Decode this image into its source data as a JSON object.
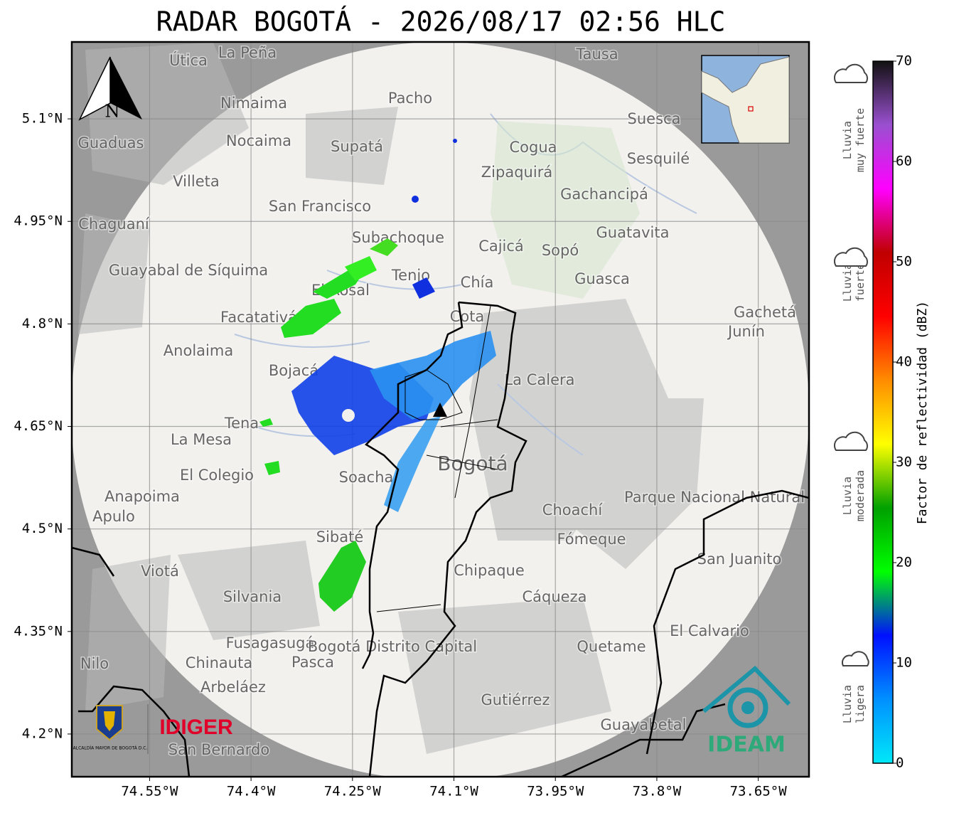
{
  "title": "RADAR BOGOTÁ - 2026/08/17 02:56 HLC",
  "map": {
    "xlim": [
      -74.665,
      -73.575
    ],
    "ylim": [
      4.1375,
      5.2125
    ],
    "xticks": [
      {
        "value": -74.55,
        "label": "74.55°W"
      },
      {
        "value": -74.4,
        "label": "74.4°W"
      },
      {
        "value": -74.25,
        "label": "74.25°W"
      },
      {
        "value": -74.1,
        "label": "74.1°W"
      },
      {
        "value": -73.95,
        "label": "73.95°W"
      },
      {
        "value": -73.8,
        "label": "73.8°W"
      },
      {
        "value": -73.65,
        "label": "73.65°W"
      }
    ],
    "yticks": [
      {
        "value": 5.1,
        "label": "5.1°N"
      },
      {
        "value": 4.95,
        "label": "4.95°N"
      },
      {
        "value": 4.8,
        "label": "4.8°N"
      },
      {
        "value": 4.65,
        "label": "4.65°N"
      },
      {
        "value": 4.5,
        "label": "4.5°N"
      },
      {
        "value": 4.35,
        "label": "4.35°N"
      },
      {
        "value": 4.2,
        "label": "4.2°N"
      }
    ],
    "grid": true,
    "north": "N",
    "places": [
      "La Peña",
      "Útica",
      "Tausa",
      "Pacho",
      "Nimaima",
      "Nocaima",
      "Supatá",
      "Guaduas",
      "Cogua",
      "Suesca",
      "Zipaquirá",
      "Sesquilé",
      "Villeta",
      "San Francisco",
      "Gachancipá",
      "Chaguaní",
      "Subachoque",
      "Guatavita",
      "Cajicá",
      "Sopó",
      "Guayabal de Síquima",
      "Tenjo",
      "Chía",
      "Guasca",
      "El Rosal",
      "Facatativá",
      "Cota",
      "Gachetá",
      "Junín",
      "Anolaima",
      "Bojacá",
      "La Calera",
      "Tena",
      "La Mesa",
      "Bogotá",
      "El Colegio",
      "Soacha",
      "Parque Nacional Natural Chingaza",
      "Anapoima",
      "Apulo",
      "Choachí",
      "Sibaté",
      "Fómeque",
      "San Juanito",
      "Viotá",
      "Chipaque",
      "Silvania",
      "Cáqueza",
      "El Calvario",
      "Fusagasugá",
      "Quetame",
      "Nilo",
      "Chinauta",
      "Pasca",
      "Bogotá Distrito Capital",
      "Arbeláez",
      "Gutiérrez",
      "Guayabetal",
      "San Bernardo"
    ],
    "logos": [
      "ALCALDÍA MAYOR DE BOGOTÁ D.C.",
      "IDIGER",
      "IDEAM"
    ]
  },
  "colorbar": {
    "lim": [
      0,
      70
    ],
    "ticks": [
      0,
      10,
      20,
      30,
      40,
      50,
      60,
      70
    ],
    "label": "Factor de reflectividad (dBZ)",
    "colors": [
      "#00e8f8",
      "#0090ff",
      "#0010ff",
      "#00ff00",
      "#00a000",
      "#ffff00",
      "#ff8c00",
      "#ff0000",
      "#c00000",
      "#ff00ff",
      "#9a50d0",
      "#111111"
    ],
    "intensity": [
      "Lluvia muy fuerte",
      "Lluvia fuerte",
      "Lluvia moderada",
      "Lluvia ligera"
    ]
  }
}
